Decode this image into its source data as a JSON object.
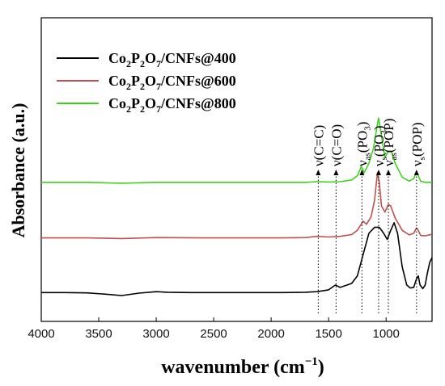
{
  "chart_data": {
    "type": "line",
    "xlabel": "wavenumber (cm",
    "xlabel_sup": "−1",
    "xlabel_tail": ")",
    "ylabel": "Absorbance (a.u.)",
    "xlim": [
      4000,
      600
    ],
    "x_reversed": true,
    "xticks": [
      4000,
      3500,
      3000,
      2500,
      2000,
      1500,
      1000
    ],
    "y_ticks_shown": false,
    "ylim": [
      0,
      1
    ],
    "legend_position": "top-left",
    "series": [
      {
        "name_parts": [
          "Co",
          "2",
          "P",
          "2",
          "O",
          "7",
          "/CNFs@400"
        ],
        "color": "#000000",
        "points": [
          [
            4000,
            0.095
          ],
          [
            3800,
            0.095
          ],
          [
            3600,
            0.094
          ],
          [
            3450,
            0.09
          ],
          [
            3300,
            0.085
          ],
          [
            3150,
            0.093
          ],
          [
            3000,
            0.098
          ],
          [
            2900,
            0.096
          ],
          [
            2700,
            0.095
          ],
          [
            2500,
            0.095
          ],
          [
            2300,
            0.095
          ],
          [
            2100,
            0.095
          ],
          [
            1900,
            0.095
          ],
          [
            1700,
            0.096
          ],
          [
            1600,
            0.098
          ],
          [
            1500,
            0.104
          ],
          [
            1440,
            0.12
          ],
          [
            1400,
            0.112
          ],
          [
            1300,
            0.125
          ],
          [
            1250,
            0.15
          ],
          [
            1200,
            0.22
          ],
          [
            1150,
            0.29
          ],
          [
            1100,
            0.31
          ],
          [
            1060,
            0.31
          ],
          [
            1020,
            0.29
          ],
          [
            990,
            0.27
          ],
          [
            960,
            0.3
          ],
          [
            930,
            0.325
          ],
          [
            900,
            0.29
          ],
          [
            860,
            0.18
          ],
          [
            820,
            0.12
          ],
          [
            790,
            0.11
          ],
          [
            760,
            0.112
          ],
          [
            735,
            0.14
          ],
          [
            720,
            0.15
          ],
          [
            705,
            0.12
          ],
          [
            680,
            0.108
          ],
          [
            660,
            0.12
          ],
          [
            640,
            0.16
          ],
          [
            620,
            0.195
          ],
          [
            600,
            0.21
          ]
        ]
      },
      {
        "name_parts": [
          "Co",
          "2",
          "P",
          "2",
          "O",
          "7",
          "/CNFs@600"
        ],
        "color": "#c0504d",
        "points": [
          [
            4000,
            0.275
          ],
          [
            3600,
            0.275
          ],
          [
            3300,
            0.273
          ],
          [
            3000,
            0.276
          ],
          [
            2600,
            0.275
          ],
          [
            2200,
            0.275
          ],
          [
            1900,
            0.275
          ],
          [
            1700,
            0.276
          ],
          [
            1600,
            0.28
          ],
          [
            1500,
            0.278
          ],
          [
            1400,
            0.28
          ],
          [
            1300,
            0.286
          ],
          [
            1250,
            0.3
          ],
          [
            1200,
            0.33
          ],
          [
            1170,
            0.32
          ],
          [
            1130,
            0.345
          ],
          [
            1100,
            0.4
          ],
          [
            1075,
            0.49
          ],
          [
            1060,
            0.46
          ],
          [
            1040,
            0.38
          ],
          [
            1010,
            0.36
          ],
          [
            980,
            0.385
          ],
          [
            960,
            0.38
          ],
          [
            920,
            0.34
          ],
          [
            860,
            0.3
          ],
          [
            800,
            0.285
          ],
          [
            760,
            0.29
          ],
          [
            735,
            0.308
          ],
          [
            720,
            0.3
          ],
          [
            700,
            0.283
          ],
          [
            660,
            0.282
          ],
          [
            620,
            0.285
          ],
          [
            600,
            0.287
          ]
        ]
      },
      {
        "name_parts": [
          "Co",
          "2",
          "P",
          "2",
          "O",
          "7",
          "/CNFs@800"
        ],
        "color": "#3fd21c",
        "points": [
          [
            4000,
            0.458
          ],
          [
            3600,
            0.458
          ],
          [
            3300,
            0.455
          ],
          [
            3000,
            0.458
          ],
          [
            2600,
            0.458
          ],
          [
            2200,
            0.458
          ],
          [
            1900,
            0.458
          ],
          [
            1700,
            0.458
          ],
          [
            1600,
            0.46
          ],
          [
            1500,
            0.459
          ],
          [
            1400,
            0.46
          ],
          [
            1300,
            0.466
          ],
          [
            1250,
            0.48
          ],
          [
            1215,
            0.51
          ],
          [
            1190,
            0.49
          ],
          [
            1150,
            0.52
          ],
          [
            1110,
            0.57
          ],
          [
            1080,
            0.64
          ],
          [
            1065,
            0.67
          ],
          [
            1040,
            0.61
          ],
          [
            1010,
            0.54
          ],
          [
            980,
            0.56
          ],
          [
            955,
            0.56
          ],
          [
            920,
            0.52
          ],
          [
            860,
            0.475
          ],
          [
            800,
            0.462
          ],
          [
            760,
            0.47
          ],
          [
            735,
            0.492
          ],
          [
            720,
            0.48
          ],
          [
            700,
            0.462
          ],
          [
            660,
            0.458
          ],
          [
            620,
            0.458
          ],
          [
            600,
            0.458
          ]
        ]
      }
    ],
    "annotations": [
      {
        "base": "ν(C=C)",
        "sub": "",
        "tail": "",
        "x": 1590
      },
      {
        "base": "ν(C=O)",
        "sub": "",
        "tail": "",
        "x": 1435
      },
      {
        "base": "ν",
        "sub": "as",
        "tail": "(PO",
        "sub2": "3",
        "tail2": ")",
        "x": 1210
      },
      {
        "base": "ν",
        "sub": "s",
        "tail": "(PO",
        "sub2": "3",
        "tail2": ")",
        "x": 1065
      },
      {
        "base": "ν",
        "sub": "as",
        "tail": "(POP)",
        "x": 980
      },
      {
        "base": "ν",
        "sub": "s",
        "tail": "(POP)",
        "x": 735
      }
    ]
  }
}
